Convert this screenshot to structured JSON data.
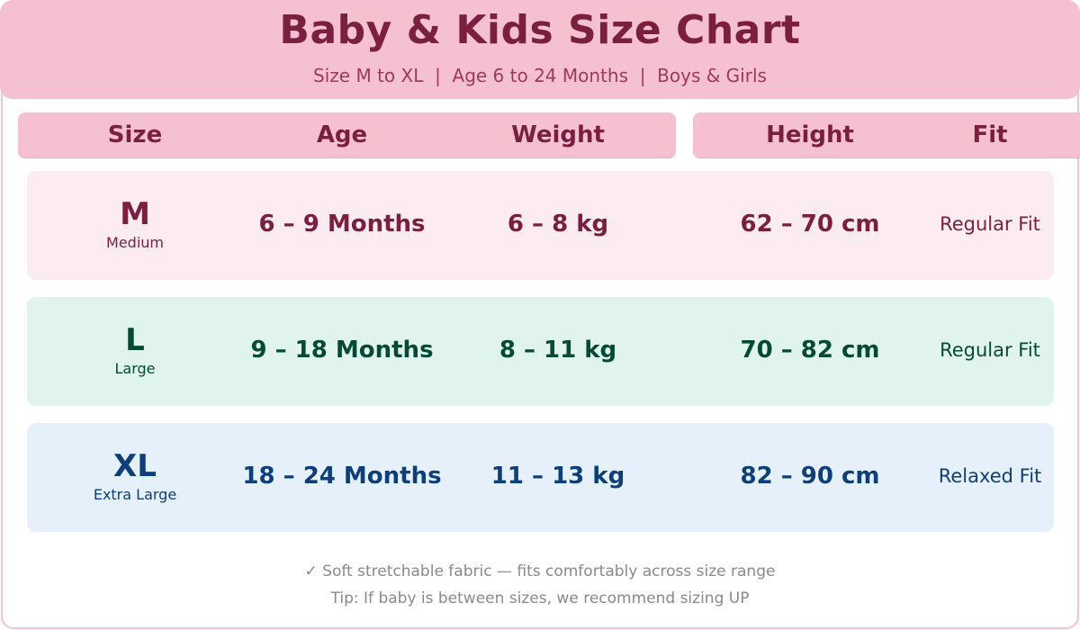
{
  "header": {
    "title": "Baby & Kids Size Chart",
    "subtitle": "Size M to XL  |  Age 6 to 24 Months  |  Boys & Girls"
  },
  "columns": [
    "Size",
    "Age",
    "Weight",
    "Height",
    "Fit"
  ],
  "rows": [
    {
      "size": "M",
      "size_name": "Medium",
      "age": "6 – 9 Months",
      "weight": "6 – 8 kg",
      "height": "62 – 70 cm",
      "fit": "Regular Fit"
    },
    {
      "size": "L",
      "size_name": "Large",
      "age": "9 – 18 Months",
      "weight": "8 – 11 kg",
      "height": "70 – 82 cm",
      "fit": "Regular Fit"
    },
    {
      "size": "XL",
      "size_name": "Extra Large",
      "age": "18 – 24 Months",
      "weight": "11 – 13 kg",
      "height": "82 – 90 cm",
      "fit": "Relaxed Fit"
    }
  ],
  "footer": {
    "note": "✓ Soft stretchable fabric — fits comfortably across size range",
    "tip": "Tip: If baby is between sizes, we recommend sizing UP"
  },
  "colors": {
    "header_bg": "#f5c0d0",
    "title": "#7a1f40",
    "row_m_bg": "#fcebf0",
    "row_l_bg": "#e0f4ed",
    "row_xl_bg": "#e5f0fb"
  }
}
